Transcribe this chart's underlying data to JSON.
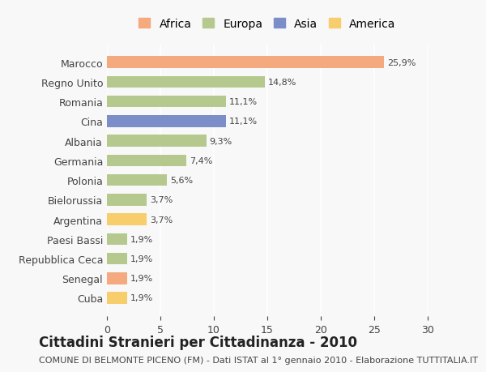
{
  "countries": [
    "Marocco",
    "Regno Unito",
    "Romania",
    "Cina",
    "Albania",
    "Germania",
    "Polonia",
    "Bielorussia",
    "Argentina",
    "Paesi Bassi",
    "Repubblica Ceca",
    "Senegal",
    "Cuba"
  ],
  "values": [
    25.9,
    14.8,
    11.1,
    11.1,
    9.3,
    7.4,
    5.6,
    3.7,
    3.7,
    1.9,
    1.9,
    1.9,
    1.9
  ],
  "labels": [
    "25,9%",
    "14,8%",
    "11,1%",
    "11,1%",
    "9,3%",
    "7,4%",
    "5,6%",
    "3,7%",
    "3,7%",
    "1,9%",
    "1,9%",
    "1,9%",
    "1,9%"
  ],
  "continents": [
    "Africa",
    "Europa",
    "Europa",
    "Asia",
    "Europa",
    "Europa",
    "Europa",
    "Europa",
    "America",
    "Europa",
    "Europa",
    "Africa",
    "America"
  ],
  "colors": {
    "Africa": "#F4A97F",
    "Europa": "#B5C98E",
    "Asia": "#7B8EC8",
    "America": "#F7CE6B"
  },
  "legend_order": [
    "Africa",
    "Europa",
    "Asia",
    "America"
  ],
  "title": "Cittadini Stranieri per Cittadinanza - 2010",
  "subtitle": "COMUNE DI BELMONTE PICENO (FM) - Dati ISTAT al 1° gennaio 2010 - Elaborazione TUTTITALIA.IT",
  "xlim": [
    0,
    30
  ],
  "xticks": [
    0,
    5,
    10,
    15,
    20,
    25,
    30
  ],
  "background_color": "#F8F8F8",
  "bar_height": 0.6,
  "title_fontsize": 12,
  "subtitle_fontsize": 8,
  "label_fontsize": 8,
  "tick_fontsize": 9,
  "legend_fontsize": 10
}
